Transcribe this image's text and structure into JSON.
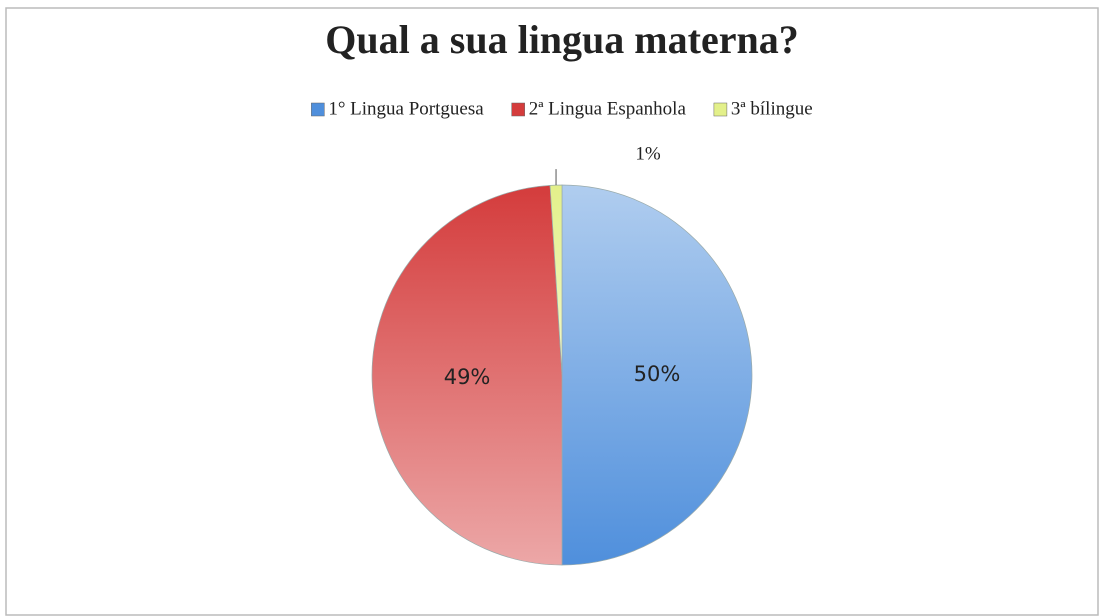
{
  "chart_data": {
    "type": "pie",
    "title": "Qual a sua lingua materna?",
    "categories": [
      "1° Lingua Portguesa",
      "2ª Lingua Espanhola",
      "3ª bílingue"
    ],
    "values": [
      50,
      49,
      1
    ],
    "value_labels": [
      "50%",
      "49%",
      "1%"
    ],
    "colors": [
      "#4f8fdc",
      "#d43c3c",
      "#e3f08a"
    ],
    "legend": "top"
  }
}
